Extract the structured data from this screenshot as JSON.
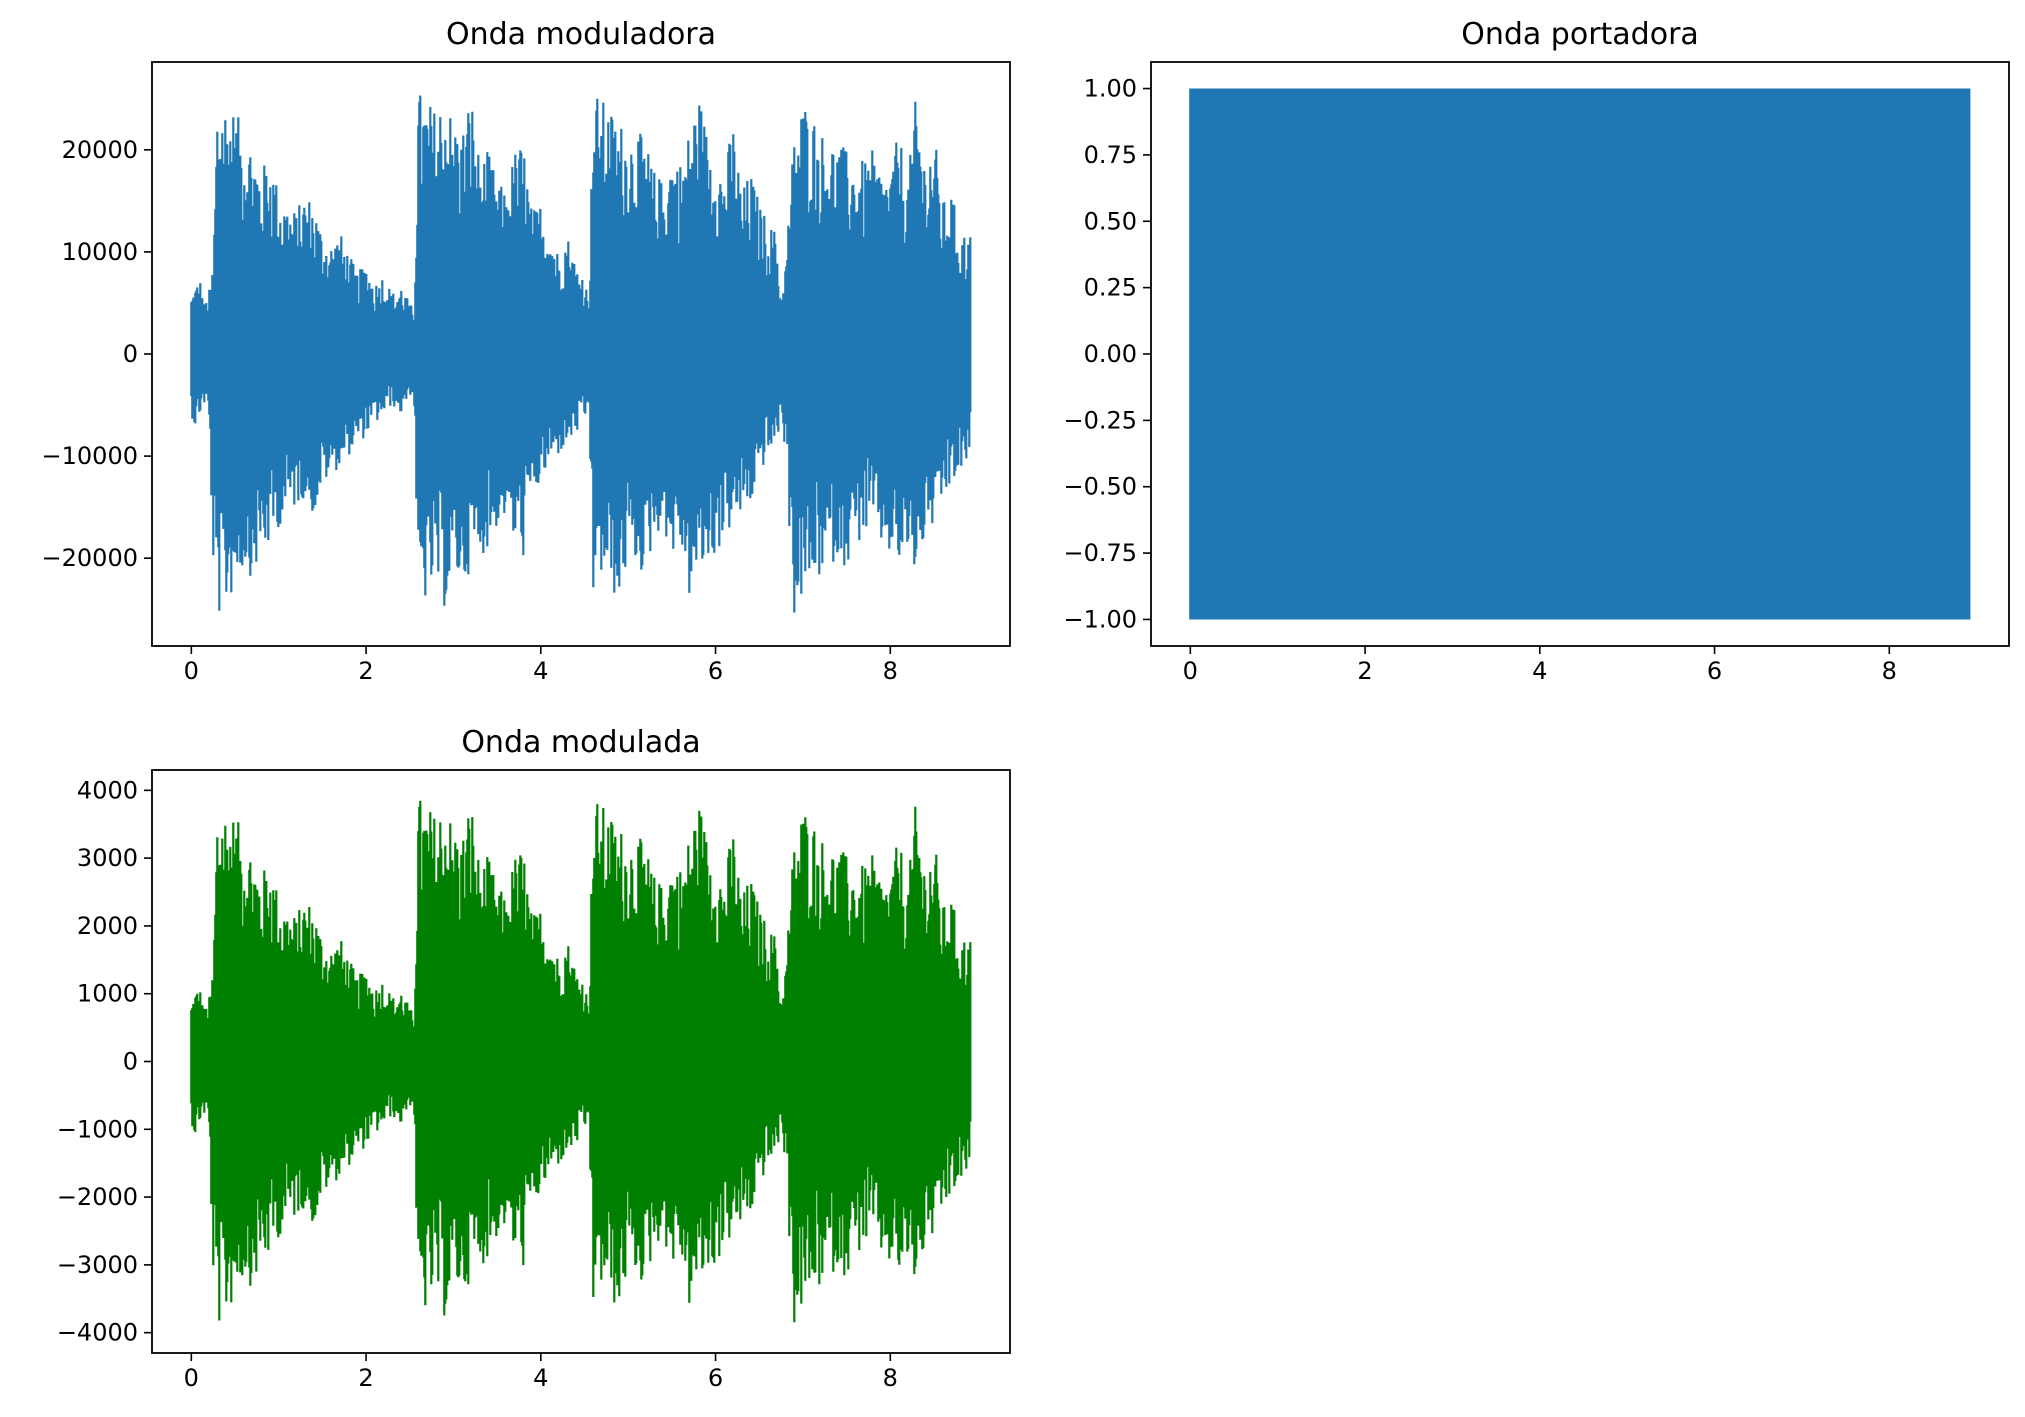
{
  "figure": {
    "background": "#ffffff"
  },
  "chart_data": [
    {
      "type": "line",
      "title": "Onda moduladora",
      "xlabel": "",
      "ylabel": "",
      "xlim": [
        -0.45,
        9.37
      ],
      "ylim": [
        -28600,
        28600
      ],
      "xticks": [
        0,
        2,
        4,
        6,
        8
      ],
      "yticks": [
        -20000,
        -10000,
        0,
        10000,
        20000
      ],
      "xtick_labels": [
        "0",
        "2",
        "4",
        "6",
        "8"
      ],
      "ytick_labels": [
        "−20000",
        "−10000",
        "0",
        "10000",
        "20000"
      ],
      "grid": false,
      "color": "#1f77b4",
      "series": [
        {
          "x_range": [
            0,
            8.92
          ],
          "envelope": {
            "t": [
              0,
              0.05,
              0.1,
              0.15,
              0.2,
              0.25,
              0.3,
              0.4,
              0.5,
              0.6,
              0.7,
              0.8,
              0.9,
              1.0,
              1.1,
              1.2,
              1.3,
              1.4,
              1.5,
              1.6,
              1.7,
              1.8,
              1.9,
              2.0,
              2.1,
              2.2,
              2.3,
              2.4,
              2.5,
              2.55,
              2.6,
              2.7,
              2.8,
              2.9,
              3.0,
              3.1,
              3.2,
              3.3,
              3.4,
              3.5,
              3.6,
              3.7,
              3.8,
              3.9,
              4.0,
              4.1,
              4.2,
              4.3,
              4.4,
              4.5,
              4.55,
              4.6,
              4.7,
              4.8,
              4.9,
              5.0,
              5.1,
              5.2,
              5.3,
              5.4,
              5.5,
              5.6,
              5.7,
              5.8,
              5.9,
              6.0,
              6.1,
              6.2,
              6.3,
              6.4,
              6.5,
              6.6,
              6.7,
              6.75,
              6.8,
              6.9,
              7.0,
              7.1,
              7.2,
              7.3,
              7.4,
              7.5,
              7.6,
              7.7,
              7.8,
              7.9,
              8.0,
              8.1,
              8.2,
              8.3,
              8.4,
              8.5,
              8.6,
              8.7,
              8.8,
              8.92
            ],
            "upper": [
              6000,
              7000,
              7500,
              5000,
              6000,
              9000,
              26000,
              25000,
              24000,
              22000,
              21000,
              18000,
              20000,
              16000,
              15000,
              14000,
              16000,
              15000,
              12000,
              11000,
              12000,
              10000,
              8000,
              9000,
              7000,
              8000,
              6000,
              7000,
              5000,
              4500,
              26000,
              25000,
              24000,
              26000,
              23000,
              22000,
              26000,
              19000,
              20000,
              17000,
              16000,
              20000,
              21000,
              14000,
              15000,
              13000,
              10000,
              12000,
              9000,
              8000,
              5000,
              26000,
              25000,
              24000,
              23000,
              22000,
              22000,
              21000,
              18000,
              17000,
              20000,
              19000,
              22000,
              26000,
              22000,
              20000,
              18000,
              23000,
              16000,
              18000,
              15000,
              13000,
              12000,
              6000,
              9000,
              22000,
              25000,
              24000,
              22000,
              21000,
              21000,
              20000,
              19000,
              19000,
              20000,
              18000,
              18000,
              22000,
              17000,
              26000,
              19000,
              22000,
              15000,
              16000,
              12000,
              12000
            ],
            "lower": [
              -6000,
              -7500,
              -6000,
              -5000,
              -6000,
              -21000,
              -26000,
              -25000,
              -23000,
              -21000,
              -22000,
              -20000,
              -19000,
              -17000,
              -16000,
              -15000,
              -14000,
              -16000,
              -13000,
              -12000,
              -11000,
              -10000,
              -9000,
              -8000,
              -7000,
              -6000,
              -5000,
              -6000,
              -4000,
              -4500,
              -26000,
              -24000,
              -23000,
              -25000,
              -22000,
              -23000,
              -21000,
              -20000,
              -19000,
              -17000,
              -16000,
              -19000,
              -20000,
              -14000,
              -13000,
              -11000,
              -10000,
              -9000,
              -8000,
              -7000,
              -5000,
              -24000,
              -22000,
              -23000,
              -25000,
              -20000,
              -21000,
              -22000,
              -18000,
              -17000,
              -20000,
              -19000,
              -24000,
              -22000,
              -21000,
              -20000,
              -18000,
              -17000,
              -16000,
              -15000,
              -12000,
              -10000,
              -9000,
              -6000,
              -10000,
              -26000,
              -24000,
              -23000,
              -22000,
              -21000,
              -20000,
              -21000,
              -19000,
              -18000,
              -17000,
              -19000,
              -20000,
              -21000,
              -20000,
              -22000,
              -18000,
              -17000,
              -15000,
              -13000,
              -12000,
              -10000
            ]
          }
        }
      ]
    },
    {
      "type": "line",
      "title": "Onda portadora",
      "xlabel": "",
      "ylabel": "",
      "xlim": [
        -0.45,
        9.37
      ],
      "ylim": [
        -1.1,
        1.1
      ],
      "xticks": [
        0,
        2,
        4,
        6,
        8
      ],
      "yticks": [
        -1.0,
        -0.75,
        -0.5,
        -0.25,
        0.0,
        0.25,
        0.5,
        0.75,
        1.0
      ],
      "xtick_labels": [
        "0",
        "2",
        "4",
        "6",
        "8"
      ],
      "ytick_labels": [
        "−1.00",
        "−0.75",
        "−0.50",
        "−0.25",
        "0.00",
        "0.25",
        "0.50",
        "0.75",
        "1.00"
      ],
      "grid": false,
      "color": "#1f77b4",
      "series": [
        {
          "x_range": [
            0,
            8.92
          ],
          "envelope": {
            "t": [
              0,
              8.92
            ],
            "upper": [
              1.0,
              1.0
            ],
            "lower": [
              -1.0,
              -1.0
            ]
          }
        }
      ]
    },
    {
      "type": "line",
      "title": "Onda modulada",
      "xlabel": "",
      "ylabel": "",
      "xlim": [
        -0.45,
        9.37
      ],
      "ylim": [
        -4300,
        4300
      ],
      "xticks": [
        0,
        2,
        4,
        6,
        8
      ],
      "yticks": [
        -4000,
        -3000,
        -2000,
        -1000,
        0,
        1000,
        2000,
        3000,
        4000
      ],
      "xtick_labels": [
        "0",
        "2",
        "4",
        "6",
        "8"
      ],
      "ytick_labels": [
        "−4000",
        "−3000",
        "−2000",
        "−1000",
        "0",
        "1000",
        "2000",
        "3000",
        "4000"
      ],
      "grid": false,
      "color": "#008000",
      "series": [
        {
          "x_range": [
            0,
            8.92
          ],
          "envelope": {
            "t": [
              0,
              0.05,
              0.1,
              0.15,
              0.2,
              0.25,
              0.3,
              0.4,
              0.5,
              0.6,
              0.7,
              0.8,
              0.9,
              1.0,
              1.1,
              1.2,
              1.3,
              1.4,
              1.5,
              1.6,
              1.7,
              1.8,
              1.9,
              2.0,
              2.1,
              2.2,
              2.3,
              2.4,
              2.5,
              2.55,
              2.6,
              2.7,
              2.8,
              2.9,
              3.0,
              3.1,
              3.2,
              3.3,
              3.4,
              3.5,
              3.6,
              3.7,
              3.8,
              3.9,
              4.0,
              4.1,
              4.2,
              4.3,
              4.4,
              4.5,
              4.55,
              4.6,
              4.7,
              4.8,
              4.9,
              5.0,
              5.1,
              5.2,
              5.3,
              5.4,
              5.5,
              5.6,
              5.7,
              5.8,
              5.9,
              6.0,
              6.1,
              6.2,
              6.3,
              6.4,
              6.5,
              6.6,
              6.7,
              6.75,
              6.8,
              6.9,
              7.0,
              7.1,
              7.2,
              7.3,
              7.4,
              7.5,
              7.6,
              7.7,
              7.8,
              7.9,
              8.0,
              8.1,
              8.2,
              8.3,
              8.4,
              8.5,
              8.6,
              8.7,
              8.8,
              8.92
            ],
            "upper": [
              900,
              1100,
              1100,
              800,
              900,
              1400,
              3950,
              3800,
              3650,
              3350,
              3200,
              2750,
              3050,
              2450,
              2300,
              2150,
              2450,
              2300,
              1850,
              1700,
              1850,
              1550,
              1250,
              1400,
              1100,
              1250,
              950,
              1100,
              800,
              700,
              3950,
              3800,
              3650,
              3950,
              3500,
              3350,
              3950,
              2900,
              3050,
              2600,
              2450,
              3050,
              3200,
              2150,
              2300,
              2000,
              1550,
              1850,
              1400,
              1250,
              800,
              3950,
              3800,
              3650,
              3500,
              3350,
              3350,
              3200,
              2750,
              2600,
              3050,
              2900,
              3350,
              3950,
              3350,
              3050,
              2750,
              3500,
              2450,
              2750,
              2300,
              2000,
              1850,
              950,
              1400,
              3350,
              3800,
              3650,
              3350,
              3200,
              3200,
              3050,
              2900,
              2900,
              3050,
              2750,
              2750,
              3350,
              2600,
              3950,
              2900,
              3350,
              2300,
              2450,
              1850,
              1850
            ],
            "lower": [
              -900,
              -1150,
              -900,
              -800,
              -900,
              -3200,
              -3950,
              -3800,
              -3500,
              -3200,
              -3350,
              -3050,
              -2900,
              -2600,
              -2450,
              -2300,
              -2150,
              -2450,
              -2000,
              -1850,
              -1700,
              -1550,
              -1400,
              -1250,
              -1100,
              -950,
              -800,
              -950,
              -650,
              -700,
              -3950,
              -3650,
              -3500,
              -3800,
              -3350,
              -3500,
              -3200,
              -3050,
              -2900,
              -2600,
              -2450,
              -2900,
              -3050,
              -2150,
              -2000,
              -1700,
              -1550,
              -1400,
              -1250,
              -1100,
              -800,
              -3650,
              -3350,
              -3500,
              -3800,
              -3050,
              -3200,
              -3350,
              -2750,
              -2600,
              -3050,
              -2900,
              -3650,
              -3350,
              -3200,
              -3050,
              -2750,
              -2600,
              -2450,
              -2300,
              -1850,
              -1550,
              -1400,
              -950,
              -1550,
              -3950,
              -3650,
              -3500,
              -3350,
              -3200,
              -3050,
              -3200,
              -2900,
              -2750,
              -2600,
              -2900,
              -3050,
              -3200,
              -3050,
              -3350,
              -2750,
              -2600,
              -2300,
              -2000,
              -1850,
              -1550
            ]
          }
        }
      ]
    }
  ]
}
